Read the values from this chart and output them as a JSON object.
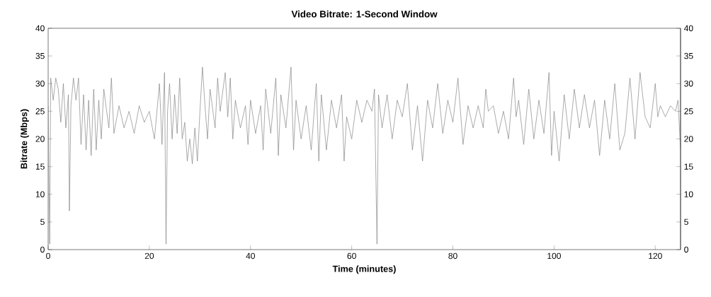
{
  "chart_data": {
    "type": "line",
    "title": "Video Bitrate: 1-Second Window",
    "xlabel": "Time (minutes)",
    "ylabel": "Bitrate (Mbps)",
    "xlim": [
      0,
      125
    ],
    "ylim": [
      0,
      40
    ],
    "xticks": [
      0,
      20,
      40,
      60,
      80,
      100,
      120
    ],
    "yticks": [
      0,
      5,
      10,
      15,
      20,
      25,
      30,
      35,
      40
    ],
    "y2lim": [
      0,
      40
    ],
    "y2ticks": [
      0,
      5,
      10,
      15,
      20,
      25,
      30,
      35,
      40
    ],
    "grid": false,
    "marker": "none",
    "line_style": "solid",
    "series": [
      {
        "color": "#808080",
        "x": [
          0,
          0.3,
          0.5,
          1,
          1.5,
          2,
          2.5,
          3,
          3.5,
          4,
          4.2,
          4.5,
          5,
          5.5,
          6,
          6.5,
          7,
          7.5,
          8,
          8.5,
          9,
          9.5,
          10,
          10.5,
          11,
          12,
          12.5,
          13,
          14,
          15,
          16,
          17,
          18,
          19,
          20,
          21,
          22,
          22.5,
          23,
          23.3,
          23.6,
          24,
          24.5,
          25,
          25.5,
          26,
          26.5,
          27,
          27.5,
          28,
          28.5,
          29,
          29.5,
          30,
          30.5,
          31,
          31.5,
          32,
          33,
          33.5,
          34,
          35,
          35.5,
          36,
          36.5,
          37,
          38,
          39,
          39.5,
          40,
          41,
          42,
          42.5,
          43,
          44,
          45,
          45.5,
          46,
          47,
          48,
          48.5,
          49,
          50,
          51,
          52,
          53,
          53.5,
          54,
          55,
          56,
          57,
          58,
          58.5,
          59,
          60,
          61,
          62,
          63,
          64,
          64.5,
          65,
          65.3,
          66,
          67,
          68,
          69,
          70,
          71,
          72,
          73,
          74,
          75,
          76,
          77,
          78,
          79,
          80,
          81,
          82,
          83,
          84,
          85,
          86,
          86.5,
          87,
          88,
          89,
          90,
          91,
          92,
          92.5,
          93,
          94,
          95,
          96,
          97,
          98,
          99,
          99.5,
          100,
          101,
          102,
          103,
          104,
          105,
          106,
          107,
          108,
          109,
          110,
          111,
          112,
          113,
          114,
          115,
          116,
          117,
          118,
          119,
          120,
          120.5,
          121,
          122,
          123,
          124,
          124.5,
          125
        ],
        "values": [
          26,
          1,
          31,
          27,
          31,
          29,
          23,
          30,
          22,
          28,
          7,
          26,
          31,
          27,
          31,
          19,
          28,
          18,
          27,
          17,
          29,
          18,
          27,
          20,
          29,
          22,
          31,
          21,
          26,
          22,
          25,
          21,
          26,
          23,
          25,
          20,
          30,
          19,
          32,
          1,
          25,
          30,
          20,
          28,
          21,
          31,
          20,
          23,
          16,
          20,
          15.5,
          22,
          16,
          25,
          33,
          26,
          20,
          29,
          22,
          31,
          25,
          32,
          24,
          31,
          20,
          27,
          22,
          26,
          19,
          27,
          21,
          26,
          18,
          29,
          21,
          31,
          17,
          28,
          22,
          33,
          18,
          27,
          20,
          26,
          18,
          30,
          16,
          28,
          18,
          27,
          22,
          28,
          16,
          24,
          20,
          27,
          23,
          27,
          25,
          29,
          1,
          28,
          22,
          28,
          20,
          27,
          24,
          30,
          18,
          26,
          16,
          27,
          22,
          30,
          21,
          27,
          23,
          31,
          19,
          26,
          22,
          26,
          22,
          29,
          25,
          26,
          21,
          25,
          20,
          31,
          24,
          27,
          19,
          29,
          20,
          27,
          21,
          32,
          17,
          25,
          16,
          28,
          20,
          29,
          22,
          28,
          22,
          27,
          17,
          27,
          20,
          30,
          18,
          21,
          31,
          20,
          32,
          24,
          22,
          30,
          24,
          26,
          24,
          26,
          25,
          27,
          18
        ]
      }
    ]
  }
}
